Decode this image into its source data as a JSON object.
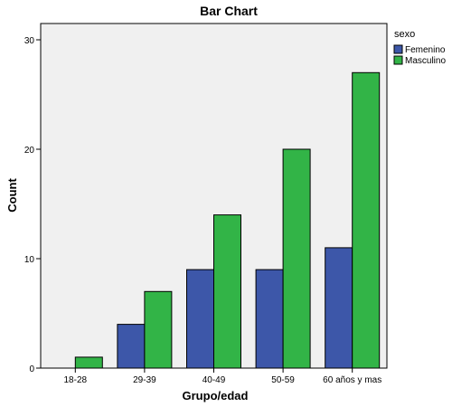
{
  "chart_data": {
    "type": "bar",
    "title": "Bar Chart",
    "xlabel": "Grupo/edad",
    "ylabel": "Count",
    "categories": [
      "18-28",
      "29-39",
      "40-49",
      "50-59",
      "60 años y mas"
    ],
    "series": [
      {
        "name": "Femenino",
        "values": [
          0,
          4,
          9,
          9,
          11
        ],
        "color": "#3d57a9"
      },
      {
        "name": "Masculino",
        "values": [
          1,
          7,
          14,
          20,
          27
        ],
        "color": "#32b447"
      }
    ],
    "ylim": [
      0,
      30
    ],
    "yticks": [
      0,
      10,
      20,
      30
    ],
    "legend": {
      "title": "sexo",
      "placement": "right"
    },
    "grid": false,
    "plot_background": "#f0f0f0"
  }
}
